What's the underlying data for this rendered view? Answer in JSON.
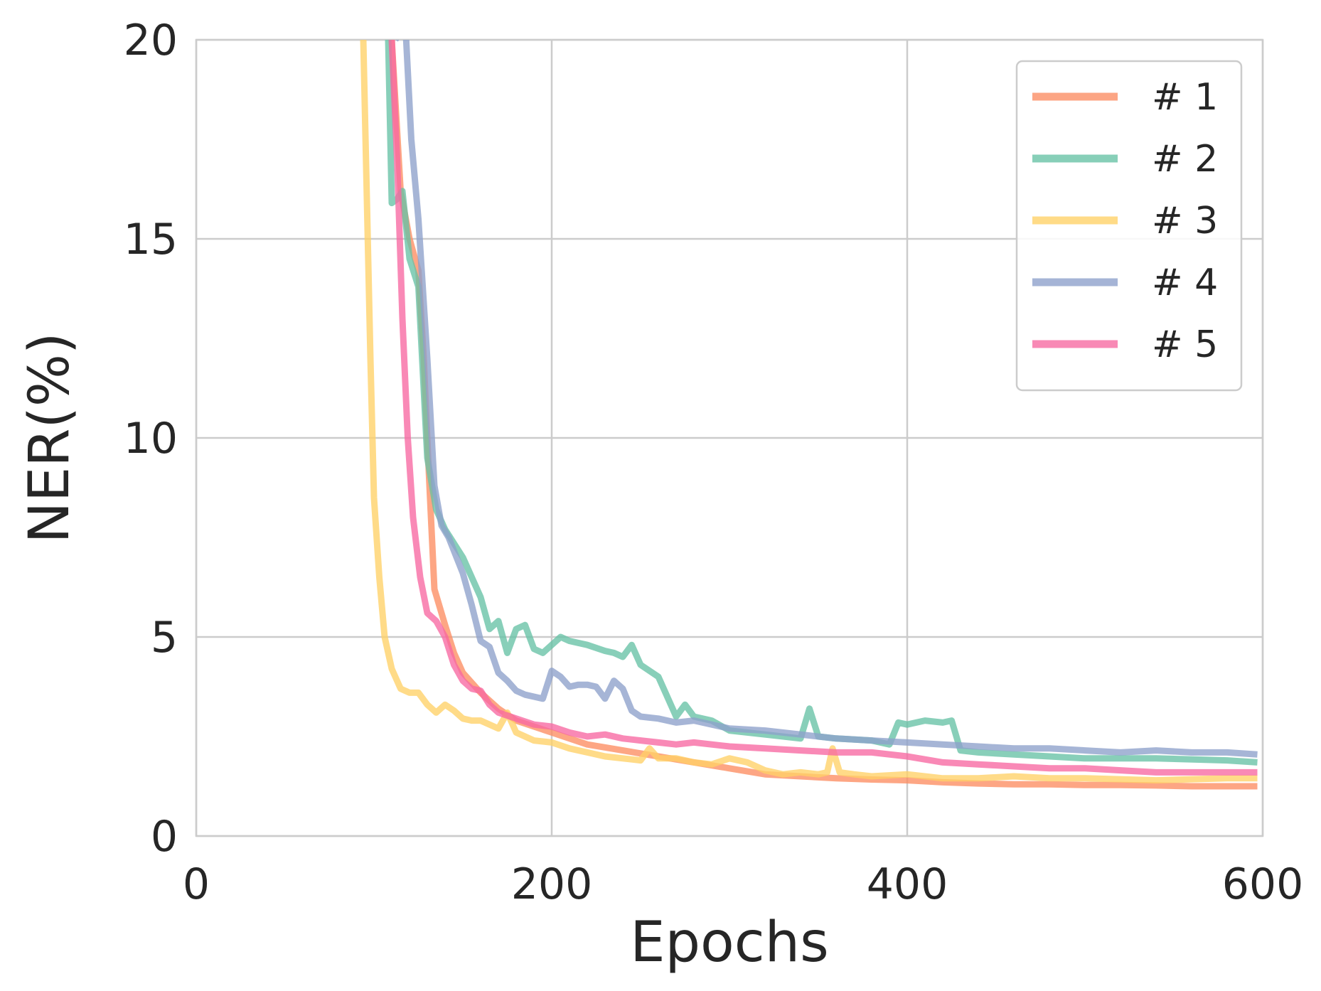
{
  "chart_data": {
    "type": "line",
    "title": "",
    "xlabel": "Epochs",
    "ylabel": "NER(%)",
    "xlim": [
      0,
      600
    ],
    "ylim": [
      0,
      20
    ],
    "xticks": [
      "0",
      "200",
      "400",
      "600"
    ],
    "yticks": [
      "0",
      "5",
      "10",
      "15",
      "20"
    ],
    "grid": true,
    "legend_position": "top-right",
    "series": [
      {
        "name": "# 1",
        "color": "#fc8d62",
        "x": [
          110,
          115,
          120,
          125,
          128,
          131,
          134,
          140,
          145,
          150,
          160,
          170,
          180,
          200,
          220,
          240,
          260,
          280,
          300,
          320,
          340,
          360,
          380,
          400,
          420,
          440,
          460,
          480,
          500,
          520,
          540,
          560,
          580,
          597
        ],
        "y": [
          20,
          16.2,
          15.0,
          14.2,
          12.0,
          9.0,
          6.2,
          5.3,
          4.6,
          4.1,
          3.6,
          3.2,
          2.9,
          2.6,
          2.3,
          2.15,
          2.0,
          1.85,
          1.7,
          1.55,
          1.5,
          1.45,
          1.42,
          1.4,
          1.35,
          1.32,
          1.3,
          1.3,
          1.28,
          1.28,
          1.27,
          1.25,
          1.25,
          1.25
        ]
      },
      {
        "name": "# 2",
        "color": "#66c2a5",
        "x": [
          108,
          110,
          113,
          116,
          120,
          125,
          130,
          135,
          140,
          150,
          160,
          165,
          170,
          175,
          180,
          185,
          190,
          195,
          200,
          205,
          210,
          220,
          230,
          235,
          240,
          245,
          250,
          260,
          270,
          275,
          280,
          290,
          300,
          320,
          340,
          345,
          350,
          360,
          380,
          390,
          395,
          400,
          410,
          420,
          425,
          430,
          440,
          460,
          480,
          500,
          540,
          580,
          597
        ],
        "y": [
          20,
          15.9,
          16.0,
          16.2,
          14.5,
          13.8,
          9.5,
          8.2,
          7.7,
          7.0,
          6.0,
          5.2,
          5.4,
          4.6,
          5.2,
          5.3,
          4.7,
          4.6,
          4.8,
          5.0,
          4.9,
          4.8,
          4.65,
          4.6,
          4.5,
          4.8,
          4.3,
          4.0,
          3.0,
          3.3,
          3.0,
          2.9,
          2.65,
          2.55,
          2.45,
          3.2,
          2.5,
          2.45,
          2.4,
          2.3,
          2.85,
          2.8,
          2.9,
          2.85,
          2.9,
          2.15,
          2.1,
          2.05,
          2.0,
          1.95,
          1.95,
          1.9,
          1.85
        ]
      },
      {
        "name": "# 3",
        "color": "#ffd166",
        "x": [
          94,
          96,
          98,
          100,
          103,
          106,
          110,
          115,
          120,
          125,
          130,
          135,
          140,
          145,
          150,
          155,
          160,
          170,
          175,
          180,
          190,
          200,
          210,
          220,
          230,
          240,
          250,
          255,
          260,
          270,
          280,
          290,
          300,
          310,
          320,
          330,
          340,
          350,
          355,
          358,
          362,
          370,
          380,
          400,
          420,
          440,
          460,
          480,
          500,
          540,
          580,
          597
        ],
        "y": [
          20,
          16.0,
          12.0,
          8.5,
          6.5,
          5.0,
          4.2,
          3.7,
          3.6,
          3.6,
          3.3,
          3.1,
          3.3,
          3.15,
          2.95,
          2.9,
          2.9,
          2.7,
          3.1,
          2.6,
          2.4,
          2.35,
          2.2,
          2.1,
          2.0,
          1.95,
          1.9,
          2.2,
          1.95,
          1.95,
          1.85,
          1.8,
          1.95,
          1.85,
          1.65,
          1.55,
          1.6,
          1.55,
          1.6,
          2.2,
          1.6,
          1.55,
          1.5,
          1.55,
          1.45,
          1.45,
          1.5,
          1.45,
          1.45,
          1.4,
          1.45,
          1.45
        ]
      },
      {
        "name": "# 4",
        "color": "#8da0cb",
        "x": [
          112,
          115,
          118,
          121,
          125,
          130,
          134,
          138,
          142,
          150,
          155,
          160,
          165,
          170,
          175,
          180,
          185,
          190,
          195,
          200,
          205,
          210,
          215,
          220,
          225,
          230,
          235,
          240,
          245,
          250,
          260,
          270,
          280,
          300,
          320,
          340,
          360,
          380,
          400,
          420,
          440,
          460,
          480,
          500,
          520,
          540,
          560,
          580,
          597
        ],
        "y": [
          20,
          20.2,
          20.1,
          17.5,
          15.5,
          12.0,
          8.8,
          7.8,
          7.5,
          6.6,
          5.8,
          4.9,
          4.75,
          4.1,
          3.9,
          3.65,
          3.55,
          3.5,
          3.45,
          4.15,
          4.0,
          3.75,
          3.8,
          3.8,
          3.75,
          3.45,
          3.9,
          3.7,
          3.15,
          3.0,
          2.95,
          2.85,
          2.9,
          2.7,
          2.65,
          2.55,
          2.45,
          2.4,
          2.35,
          2.3,
          2.25,
          2.2,
          2.2,
          2.15,
          2.1,
          2.15,
          2.1,
          2.1,
          2.05
        ]
      },
      {
        "name": "# 5",
        "color": "#f768a1",
        "x": [
          110,
          113,
          116,
          119,
          122,
          126,
          130,
          135,
          140,
          145,
          150,
          155,
          160,
          165,
          170,
          180,
          190,
          200,
          210,
          220,
          230,
          240,
          250,
          260,
          270,
          280,
          300,
          320,
          340,
          360,
          380,
          400,
          420,
          440,
          460,
          480,
          500,
          520,
          540,
          560,
          580,
          597
        ],
        "y": [
          20,
          17.0,
          13.0,
          10.0,
          8.0,
          6.5,
          5.6,
          5.4,
          5.0,
          4.3,
          3.9,
          3.7,
          3.65,
          3.3,
          3.1,
          2.95,
          2.8,
          2.75,
          2.6,
          2.5,
          2.55,
          2.45,
          2.4,
          2.35,
          2.3,
          2.35,
          2.25,
          2.2,
          2.15,
          2.1,
          2.1,
          2.0,
          1.85,
          1.8,
          1.75,
          1.7,
          1.7,
          1.65,
          1.6,
          1.6,
          1.6,
          1.6
        ]
      }
    ]
  }
}
